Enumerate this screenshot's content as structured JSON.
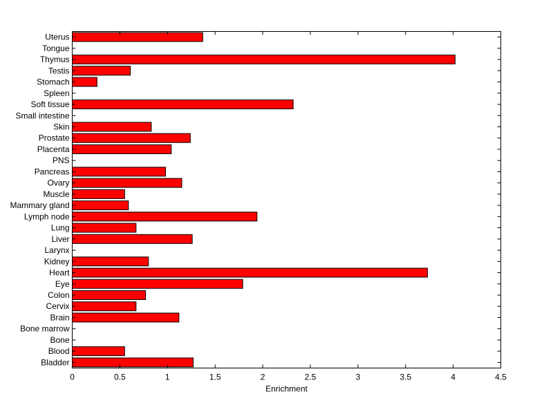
{
  "chart_data": {
    "type": "bar",
    "orientation": "horizontal",
    "title": "",
    "xlabel": "Enrichment",
    "ylabel": "",
    "xlim": [
      0,
      4.5
    ],
    "xticks": [
      0,
      0.5,
      1,
      1.5,
      2,
      2.5,
      3,
      3.5,
      4,
      4.5
    ],
    "xtick_labels": [
      "0",
      "0.5",
      "1",
      "1.5",
      "2",
      "2.5",
      "3",
      "3.5",
      "4",
      "4.5"
    ],
    "grid": false,
    "bar_color": "#ff0000",
    "bar_edge_color": "#000000",
    "categories": [
      "Uterus",
      "Tongue",
      "Thymus",
      "Testis",
      "Stomach",
      "Spleen",
      "Soft tissue",
      "Small intestine",
      "Skin",
      "Prostate",
      "Placenta",
      "PNS",
      "Pancreas",
      "Ovary",
      "Muscle",
      "Mammary gland",
      "Lymph node",
      "Lung",
      "Liver",
      "Larynx",
      "Kidney",
      "Heart",
      "Eye",
      "Colon",
      "Cervix",
      "Brain",
      "Bone marrow",
      "Bone",
      "Blood",
      "Bladder"
    ],
    "values": [
      1.37,
      0,
      4.02,
      0.61,
      0.26,
      0,
      2.32,
      0,
      0.83,
      1.24,
      1.04,
      0,
      0.98,
      1.15,
      0.55,
      0.59,
      1.94,
      0.67,
      1.26,
      0,
      0.8,
      3.73,
      1.79,
      0.77,
      0.67,
      1.12,
      0,
      0,
      0.55,
      1.27
    ]
  }
}
